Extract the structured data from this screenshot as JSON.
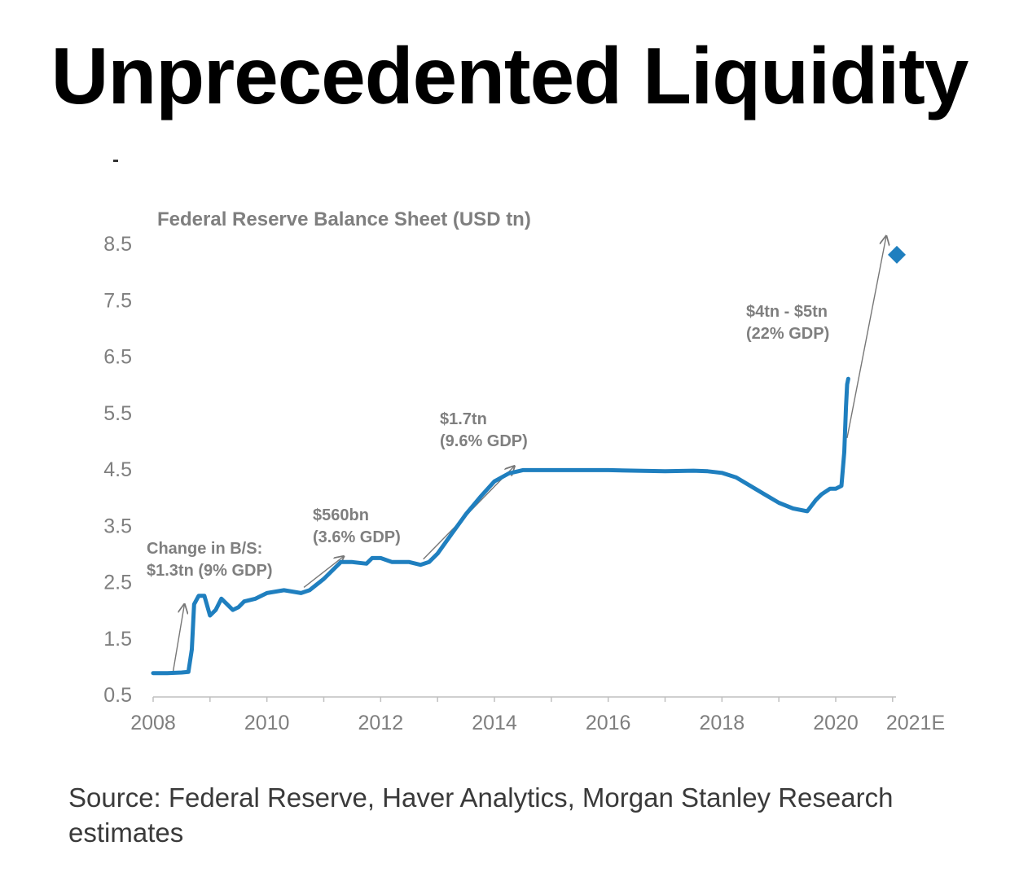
{
  "headline": "Unprecedented Liquidity",
  "source": "Source: Federal Reserve, Haver Analytics, Morgan Stanley Research estimates",
  "chart_data": {
    "type": "line",
    "title": "Federal Reserve Balance Sheet (USD tn)",
    "xlabel": "",
    "ylabel": "",
    "xlim": [
      2008,
      2021.25
    ],
    "ylim": [
      0.5,
      8.5
    ],
    "y_ticks": [
      "0.5",
      "1.5",
      "2.5",
      "3.5",
      "4.5",
      "5.5",
      "6.5",
      "7.5",
      "8.5"
    ],
    "x_ticks": [
      {
        "value": 2008,
        "label": "2008"
      },
      {
        "value": 2010,
        "label": "2010"
      },
      {
        "value": 2012,
        "label": "2012"
      },
      {
        "value": 2014,
        "label": "2014"
      },
      {
        "value": 2016,
        "label": "2016"
      },
      {
        "value": 2018,
        "label": "2018"
      },
      {
        "value": 2020,
        "label": "2020"
      },
      {
        "value": 2021.25,
        "label": "2021E"
      }
    ],
    "grid": false,
    "series": [
      {
        "color": "#1f7fbf",
        "x": [
          2008.0,
          2008.25,
          2008.5,
          2008.62,
          2008.68,
          2008.72,
          2008.8,
          2008.9,
          2009.0,
          2009.1,
          2009.2,
          2009.3,
          2009.4,
          2009.5,
          2009.6,
          2009.8,
          2010.0,
          2010.3,
          2010.6,
          2010.75,
          2011.0,
          2011.3,
          2011.5,
          2011.75,
          2011.85,
          2012.0,
          2012.2,
          2012.5,
          2012.7,
          2012.85,
          2013.0,
          2013.25,
          2013.5,
          2013.75,
          2014.0,
          2014.25,
          2014.5,
          2014.75,
          2015.0,
          2015.5,
          2016.0,
          2016.5,
          2017.0,
          2017.5,
          2017.75,
          2018.0,
          2018.25,
          2018.5,
          2018.75,
          2019.0,
          2019.25,
          2019.5,
          2019.65,
          2019.75,
          2019.9,
          2020.0,
          2020.1,
          2020.15,
          2020.18,
          2020.2,
          2020.22
        ],
        "y": [
          0.88,
          0.88,
          0.89,
          0.9,
          1.3,
          2.1,
          2.25,
          2.25,
          1.9,
          2.0,
          2.2,
          2.1,
          2.0,
          2.05,
          2.15,
          2.2,
          2.3,
          2.35,
          2.3,
          2.35,
          2.55,
          2.85,
          2.85,
          2.82,
          2.92,
          2.92,
          2.85,
          2.85,
          2.8,
          2.85,
          3.0,
          3.35,
          3.7,
          4.0,
          4.28,
          4.42,
          4.48,
          4.48,
          4.48,
          4.48,
          4.48,
          4.47,
          4.46,
          4.47,
          4.46,
          4.43,
          4.35,
          4.2,
          4.05,
          3.9,
          3.8,
          3.75,
          3.95,
          4.05,
          4.15,
          4.15,
          4.2,
          4.8,
          5.6,
          6.0,
          6.1
        ]
      }
    ],
    "projection": {
      "x": 2021.25,
      "y": 8.3,
      "label": "2021E",
      "color": "#1f7fbf"
    },
    "annotations": [
      {
        "lines": [
          "Change in B/S:",
          "$1.3tn (9% GDP)"
        ],
        "arrow_from": [
          2008.35,
          0.9
        ],
        "arrow_to": [
          2008.55,
          2.1
        ]
      },
      {
        "lines": [
          "$560bn",
          "(3.6% GDP)"
        ],
        "arrow_from": [
          2010.65,
          2.4
        ],
        "arrow_to": [
          2011.35,
          2.95
        ]
      },
      {
        "lines": [
          "$1.7tn",
          "(9.6% GDP)"
        ],
        "arrow_from": [
          2012.75,
          2.9
        ],
        "arrow_to": [
          2014.35,
          4.55
        ]
      },
      {
        "lines": [
          "$4tn - $5tn",
          "(22% GDP)"
        ],
        "arrow_from": [
          2020.2,
          5.05
        ],
        "arrow_to": [
          2020.9,
          8.2
        ]
      }
    ]
  }
}
